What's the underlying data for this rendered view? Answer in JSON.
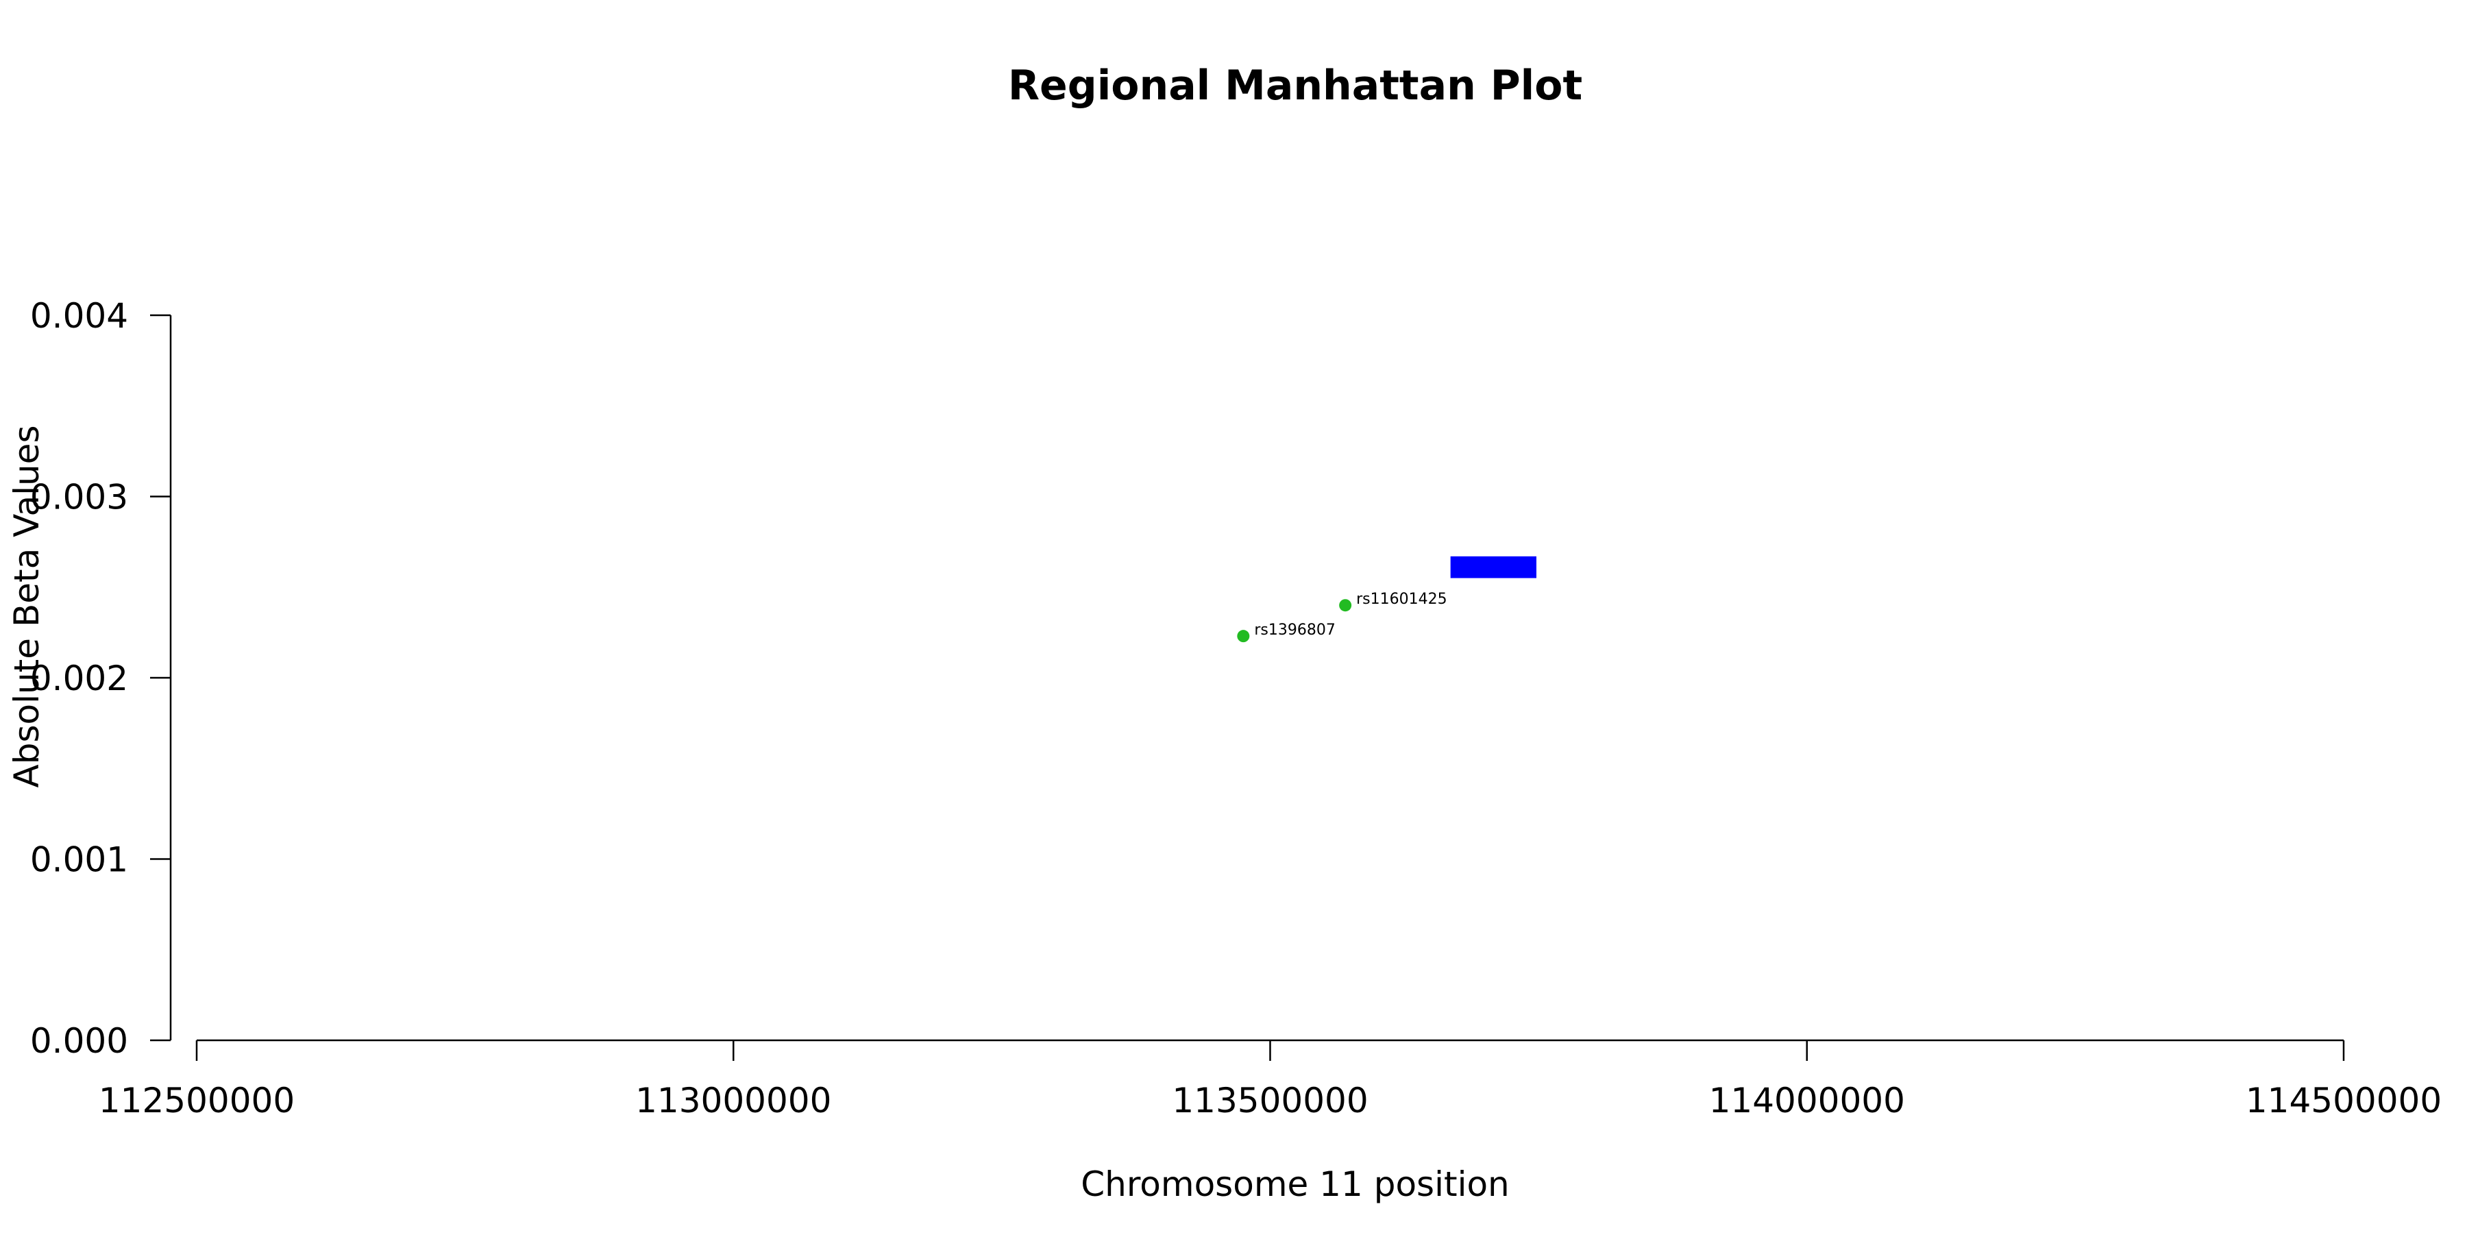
{
  "chart_data": {
    "type": "scatter",
    "title": "Regional Manhattan Plot",
    "xlabel": "Chromosome 11 position",
    "ylabel": "Absolute Beta Values",
    "xlim": [
      112500000,
      114500000
    ],
    "ylim": [
      0.0,
      0.004
    ],
    "x_ticks": [
      112500000,
      113000000,
      113500000,
      114000000,
      114500000
    ],
    "x_tick_labels": [
      "112500000",
      "113000000",
      "113500000",
      "114000000",
      "114500000"
    ],
    "y_ticks": [
      0.0,
      0.001,
      0.002,
      0.003,
      0.004
    ],
    "y_tick_labels": [
      "0.000",
      "0.001",
      "0.002",
      "0.003",
      "0.004"
    ],
    "grid": false,
    "points": [
      {
        "x": 113475000,
        "y": 0.00223,
        "label": "rs1396807",
        "color": "#22bb22"
      },
      {
        "x": 113570000,
        "y": 0.0024,
        "label": "rs11601425",
        "color": "#22bb22"
      }
    ],
    "gene_region": {
      "x_start": 113668000,
      "x_end": 113748000,
      "y_low": 0.00255,
      "y_high": 0.00267,
      "color": "#0000ff"
    }
  }
}
